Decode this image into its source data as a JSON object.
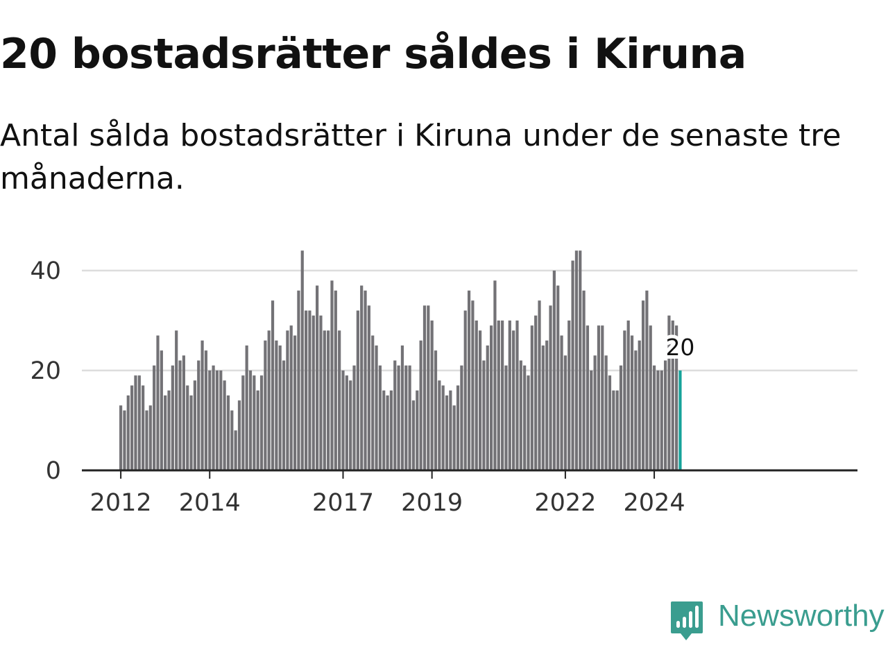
{
  "header": {
    "title": "20 bostadsrätter såldes i Kiruna",
    "subtitle": "Antal sålda bostadsrätter i Kiruna under de senaste tre månaderna."
  },
  "brand": {
    "name": "Newsworthy",
    "color": "#3a9d8f"
  },
  "colors": {
    "bar": "#737276",
    "highlight": "#17a39a",
    "grid": "#dddddd",
    "axis": "#222222"
  },
  "chart_data": {
    "type": "bar",
    "x_start": "2012-01",
    "x_frequency": "monthly",
    "values": [
      13,
      12,
      15,
      17,
      19,
      19,
      17,
      12,
      13,
      21,
      27,
      24,
      15,
      16,
      21,
      28,
      22,
      23,
      17,
      15,
      18,
      22,
      26,
      24,
      20,
      21,
      20,
      20,
      18,
      15,
      12,
      8,
      14,
      19,
      25,
      20,
      19,
      16,
      19,
      26,
      28,
      34,
      26,
      25,
      22,
      28,
      29,
      27,
      36,
      44,
      32,
      32,
      31,
      37,
      31,
      28,
      28,
      38,
      36,
      28,
      20,
      19,
      18,
      21,
      32,
      37,
      36,
      33,
      27,
      25,
      21,
      16,
      15,
      16,
      22,
      21,
      25,
      21,
      21,
      14,
      16,
      26,
      33,
      33,
      30,
      24,
      18,
      17,
      15,
      16,
      13,
      17,
      21,
      32,
      36,
      34,
      30,
      28,
      22,
      25,
      29,
      38,
      30,
      30,
      21,
      30,
      28,
      30,
      22,
      21,
      19,
      29,
      31,
      34,
      25,
      26,
      33,
      40,
      37,
      27,
      23,
      30,
      42,
      44,
      44,
      36,
      29,
      20,
      23,
      29,
      29,
      23,
      19,
      16,
      16,
      21,
      28,
      30,
      27,
      24,
      26,
      34,
      36,
      29,
      21,
      20,
      20,
      22,
      31,
      30,
      29,
      20
    ],
    "x_ticks": [
      "2012",
      "2014",
      "2017",
      "2019",
      "2022",
      "2024"
    ],
    "y_ticks": [
      0,
      20,
      40
    ],
    "ylim": [
      0,
      44
    ],
    "highlight_last": true,
    "annotation": "20",
    "grid": true
  }
}
